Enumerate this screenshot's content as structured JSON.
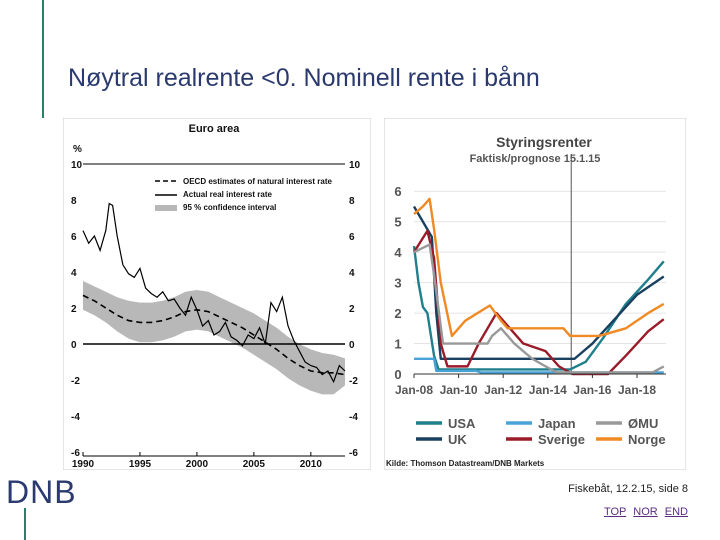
{
  "title": "Nøytral realrente <0. Nominell rente i bånn",
  "logo": "DNB",
  "footer": "Fiskebåt, 12.2.15, side 8",
  "nav": [
    "TOP",
    "NOR",
    "END"
  ],
  "chart_data": [
    {
      "type": "line",
      "title": "Euro area",
      "ylabel": "%",
      "xlim": [
        1990,
        2013
      ],
      "ylim": [
        -6,
        10
      ],
      "xticks": [
        "1990",
        "1995",
        "2000",
        "2005",
        "2010"
      ],
      "yticks": [
        "10",
        "8",
        "6",
        "4",
        "2",
        "0",
        "-2",
        "-4",
        "-6"
      ],
      "legend": [
        "OECD estimates of natural interest rate",
        "Actual real interest rate",
        "95 % confidence interval"
      ],
      "colors": {
        "actual": "#000000",
        "band": "#b8b8b8",
        "natural": "#000000"
      },
      "series": [
        {
          "name": "OECD estimates of natural interest rate",
          "x": [
            1990,
            1991,
            1992,
            1993,
            1994,
            1995,
            1996,
            1997,
            1998,
            1999,
            2000,
            2001,
            2002,
            2003,
            2004,
            2005,
            2006,
            2007,
            2008,
            2009,
            2010,
            2011,
            2012,
            2013
          ],
          "values": [
            2.7,
            2.4,
            2.0,
            1.6,
            1.3,
            1.2,
            1.2,
            1.3,
            1.5,
            1.8,
            1.9,
            1.8,
            1.5,
            1.2,
            0.9,
            0.5,
            0.1,
            -0.3,
            -0.8,
            -1.2,
            -1.5,
            -1.6,
            -1.6,
            -1.7
          ]
        },
        {
          "name": "95 % confidence interval",
          "x": [
            1990,
            1991,
            1992,
            1993,
            1994,
            1995,
            1996,
            1997,
            1998,
            1999,
            2000,
            2001,
            2002,
            2003,
            2004,
            2005,
            2006,
            2007,
            2008,
            2009,
            2010,
            2011,
            2012,
            2013
          ],
          "upper": [
            3.5,
            3.2,
            2.9,
            2.6,
            2.4,
            2.3,
            2.3,
            2.4,
            2.6,
            2.9,
            3.0,
            2.9,
            2.6,
            2.3,
            2.0,
            1.7,
            1.3,
            0.9,
            0.4,
            0.0,
            -0.3,
            -0.5,
            -0.6,
            -0.8
          ],
          "lower": [
            1.9,
            1.6,
            1.2,
            0.7,
            0.3,
            0.1,
            0.1,
            0.2,
            0.4,
            0.7,
            0.8,
            0.7,
            0.4,
            0.1,
            -0.2,
            -0.6,
            -1.0,
            -1.4,
            -1.9,
            -2.3,
            -2.6,
            -2.8,
            -2.8,
            -2.3
          ]
        },
        {
          "name": "Actual real interest rate",
          "x": [
            1990,
            1990.5,
            1991,
            1991.5,
            1992,
            1992.3,
            1992.6,
            1993,
            1993.5,
            1994,
            1994.5,
            1995,
            1995.5,
            1996,
            1996.5,
            1997,
            1997.5,
            1998,
            1998.5,
            1999,
            1999.5,
            2000,
            2000.5,
            2001,
            2001.5,
            2002,
            2002.5,
            2003,
            2003.5,
            2004,
            2004.5,
            2005,
            2005.5,
            2006,
            2006.5,
            2007,
            2007.5,
            2008,
            2008.5,
            2009,
            2009.5,
            2010,
            2010.5,
            2011,
            2011.5,
            2012,
            2012.5,
            2013
          ],
          "values": [
            6.3,
            5.6,
            6.0,
            5.2,
            6.3,
            7.8,
            7.7,
            6.0,
            4.4,
            3.9,
            3.7,
            4.2,
            3.1,
            2.8,
            2.6,
            2.9,
            2.4,
            2.5,
            2.0,
            1.6,
            2.6,
            1.9,
            1.0,
            1.3,
            0.5,
            0.7,
            1.2,
            0.4,
            0.2,
            -0.1,
            0.5,
            0.3,
            0.9,
            0.0,
            2.3,
            1.8,
            2.6,
            1.0,
            0.2,
            -0.4,
            -1.0,
            -1.2,
            -1.3,
            -1.7,
            -1.5,
            -2.1,
            -1.2,
            -1.5
          ]
        }
      ]
    },
    {
      "type": "line",
      "title": "Styringsrenter",
      "subtitle": "Faktisk/prognose 15.1.15",
      "source": "Kilde: Thomson Datastream/DNB Markets",
      "xlim": [
        2008,
        2019.3
      ],
      "ylim": [
        0,
        6.5
      ],
      "xticks": [
        "Jan-08",
        "Jan-10",
        "Jan-12",
        "Jan-14",
        "Jan-16",
        "Jan-18"
      ],
      "yticks": [
        "6",
        "5",
        "4",
        "3",
        "2",
        "1",
        "0"
      ],
      "forecast_start": 2015.05,
      "series": [
        {
          "name": "USA",
          "color": "#1f7f8c",
          "x": [
            2008,
            2008.2,
            2008.4,
            2008.6,
            2008.9,
            2009.1,
            2015,
            2015.7,
            2016.5,
            2017.5,
            2018.5,
            2019.2
          ],
          "values": [
            4.2,
            3.0,
            2.2,
            2.0,
            0.6,
            0.15,
            0.15,
            0.4,
            1.2,
            2.3,
            3.1,
            3.7
          ]
        },
        {
          "name": "UK",
          "color": "#1a4060",
          "x": [
            2008,
            2008.8,
            2009.0,
            2009.2,
            2015.2,
            2016.0,
            2017.0,
            2018.0,
            2019.2
          ],
          "values": [
            5.5,
            4.5,
            2.0,
            0.5,
            0.5,
            1.0,
            1.8,
            2.6,
            3.2
          ]
        },
        {
          "name": "Japan",
          "color": "#4aa3d8",
          "x": [
            2008,
            2008.9,
            2009.0,
            2010.8,
            2011.0,
            2019.2
          ],
          "values": [
            0.5,
            0.5,
            0.1,
            0.1,
            0.05,
            0.05
          ]
        },
        {
          "name": "Sverige",
          "color": "#9a1b2a",
          "x": [
            2008,
            2008.6,
            2008.9,
            2009.2,
            2009.5,
            2010.4,
            2010.9,
            2011.3,
            2011.7,
            2012.3,
            2012.9,
            2013.9,
            2014.5,
            2015.1,
            2016.7,
            2017.5,
            2018.5,
            2019.2
          ],
          "values": [
            4.0,
            4.7,
            3.8,
            1.0,
            0.25,
            0.25,
            1.0,
            1.5,
            2.0,
            1.5,
            1.0,
            0.75,
            0.25,
            0.0,
            0.0,
            0.6,
            1.4,
            1.8
          ]
        },
        {
          "name": "ØMU",
          "color": "#999999",
          "x": [
            2008,
            2008.7,
            2008.9,
            2009.3,
            2011.3,
            2011.5,
            2011.9,
            2012.5,
            2013.3,
            2013.9,
            2014.4,
            2018.7,
            2019.2
          ],
          "values": [
            4.0,
            4.25,
            3.25,
            1.0,
            1.0,
            1.25,
            1.5,
            1.0,
            0.5,
            0.25,
            0.05,
            0.05,
            0.25
          ]
        },
        {
          "name": "Norge",
          "color": "#f08a24",
          "x": [
            2008,
            2008.4,
            2008.7,
            2008.9,
            2009.2,
            2009.7,
            2010.3,
            2011.4,
            2011.9,
            2012.2,
            2013.0,
            2014.7,
            2015.0,
            2016.3,
            2017.5,
            2018.5,
            2019.2
          ],
          "values": [
            5.25,
            5.5,
            5.75,
            4.75,
            3.0,
            1.25,
            1.75,
            2.25,
            1.75,
            1.5,
            1.5,
            1.5,
            1.25,
            1.25,
            1.5,
            2.0,
            2.3
          ]
        }
      ]
    }
  ]
}
